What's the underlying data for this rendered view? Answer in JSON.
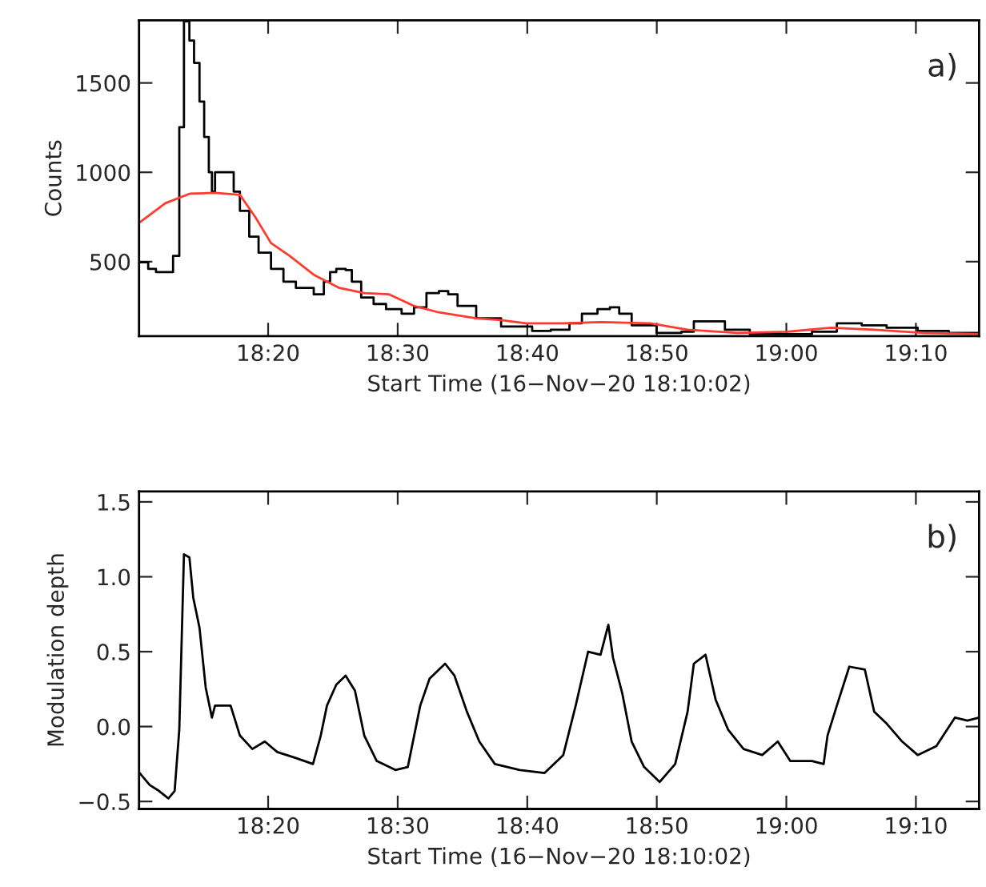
{
  "chart_data": [
    {
      "type": "line",
      "xlabel": "Start Time (16−Nov−20 18:10:02)",
      "ylabel": "Counts",
      "annotations": [
        "a)"
      ],
      "xlim": [
        18.1672,
        19.248
      ],
      "ylim": [
        83,
        1850
      ],
      "yticks": [
        500,
        1000,
        1500
      ],
      "xticks": [
        {
          "value": 18.3333,
          "label": "18:20"
        },
        {
          "value": 18.5,
          "label": "18:30"
        },
        {
          "value": 18.6667,
          "label": "18:40"
        },
        {
          "value": 18.8333,
          "label": "18:50"
        },
        {
          "value": 19.0,
          "label": "19:00"
        },
        {
          "value": 19.1667,
          "label": "19:10"
        }
      ],
      "series": [
        {
          "type": "step",
          "color": "#000000",
          "x": [
            18.168,
            18.179,
            18.189,
            18.205,
            18.211,
            18.219,
            18.225,
            18.232,
            18.238,
            18.245,
            18.251,
            18.257,
            18.261,
            18.265,
            18.281,
            18.289,
            18.297,
            18.309,
            18.321,
            18.337,
            18.353,
            18.369,
            18.392,
            18.405,
            18.413,
            18.421,
            18.433,
            18.441,
            18.453,
            18.469,
            18.485,
            18.505,
            18.521,
            18.537,
            18.553,
            18.565,
            18.577,
            18.601,
            18.633,
            18.673,
            18.697,
            18.721,
            18.737,
            18.757,
            18.773,
            18.785,
            18.801,
            18.833,
            18.865,
            18.881,
            18.897,
            18.921,
            18.953,
            18.993,
            19.033,
            19.065,
            19.097,
            19.129,
            19.169,
            19.209,
            19.248
          ],
          "values": [
            497,
            460,
            442,
            442,
            532,
            1252,
            1845,
            1737,
            1612,
            1396,
            1198,
            1000,
            892,
            1000,
            1000,
            892,
            784,
            640,
            550,
            460,
            388,
            353,
            317,
            388,
            442,
            460,
            453,
            388,
            299,
            263,
            234,
            209,
            245,
            324,
            335,
            317,
            252,
            183,
            137,
            112,
            119,
            155,
            209,
            234,
            245,
            209,
            144,
            101,
            108,
            166,
            166,
            119,
            94,
            94,
            108,
            155,
            144,
            130,
            112,
            101,
            101
          ]
        },
        {
          "color": "#ff3b2f",
          "x": [
            18.168,
            18.201,
            18.233,
            18.265,
            18.297,
            18.317,
            18.337,
            18.361,
            18.393,
            18.425,
            18.457,
            18.489,
            18.521,
            18.553,
            18.601,
            18.633,
            18.665,
            18.713,
            18.761,
            18.825,
            18.873,
            18.937,
            19.001,
            19.057,
            19.113,
            19.177,
            19.248
          ],
          "values": [
            719,
            827,
            881,
            885,
            874,
            748,
            604,
            532,
            424,
            353,
            324,
            317,
            252,
            216,
            183,
            173,
            155,
            155,
            162,
            155,
            119,
            101,
            108,
            130,
            119,
            101,
            94
          ]
        }
      ]
    },
    {
      "type": "line",
      "xlabel": "Start Time (16−Nov−20 18:10:02)",
      "ylabel": "Modulation depth",
      "annotations": [
        "b)"
      ],
      "xlim": [
        18.1672,
        19.248
      ],
      "ylim": [
        -0.55,
        1.57
      ],
      "yticks": [
        {
          "value": -0.5,
          "label": "−0.5"
        },
        {
          "value": 0.0,
          "label": "0.0"
        },
        {
          "value": 0.5,
          "label": "0.5"
        },
        {
          "value": 1.0,
          "label": "1.0"
        },
        {
          "value": 1.5,
          "label": "1.5"
        }
      ],
      "xticks": [
        {
          "value": 18.3333,
          "label": "18:20"
        },
        {
          "value": 18.5,
          "label": "18:30"
        },
        {
          "value": 18.6667,
          "label": "18:40"
        },
        {
          "value": 18.8333,
          "label": "18:50"
        },
        {
          "value": 19.0,
          "label": "19:00"
        },
        {
          "value": 19.1667,
          "label": "19:10"
        }
      ],
      "series": [
        {
          "color": "#000000",
          "x": [
            18.168,
            18.181,
            18.193,
            18.205,
            18.213,
            18.219,
            18.225,
            18.232,
            18.237,
            18.245,
            18.253,
            18.261,
            18.265,
            18.285,
            18.297,
            18.313,
            18.329,
            18.345,
            18.369,
            18.391,
            18.401,
            18.409,
            18.421,
            18.433,
            18.445,
            18.457,
            18.473,
            18.497,
            18.513,
            18.529,
            18.541,
            18.561,
            18.573,
            18.589,
            18.605,
            18.625,
            18.657,
            18.689,
            18.713,
            18.729,
            18.745,
            18.761,
            18.771,
            18.777,
            18.789,
            18.801,
            18.817,
            18.837,
            18.857,
            18.873,
            18.881,
            18.896,
            18.909,
            18.925,
            18.945,
            18.969,
            18.989,
            19.005,
            19.033,
            19.048,
            19.053,
            19.065,
            19.081,
            19.101,
            19.113,
            19.129,
            19.149,
            19.169,
            19.193,
            19.217,
            19.233,
            19.248
          ],
          "values": [
            -0.31,
            -0.39,
            -0.43,
            -0.48,
            -0.43,
            -0.02,
            1.15,
            1.13,
            0.86,
            0.66,
            0.26,
            0.06,
            0.14,
            0.14,
            -0.06,
            -0.15,
            -0.1,
            -0.17,
            -0.21,
            -0.25,
            -0.06,
            0.14,
            0.28,
            0.34,
            0.24,
            -0.06,
            -0.23,
            -0.29,
            -0.27,
            0.14,
            0.32,
            0.42,
            0.34,
            0.1,
            -0.1,
            -0.25,
            -0.29,
            -0.31,
            -0.19,
            0.14,
            0.5,
            0.48,
            0.68,
            0.46,
            0.22,
            -0.1,
            -0.27,
            -0.37,
            -0.25,
            0.1,
            0.42,
            0.48,
            0.18,
            -0.02,
            -0.15,
            -0.19,
            -0.1,
            -0.23,
            -0.23,
            -0.25,
            -0.06,
            0.14,
            0.4,
            0.38,
            0.1,
            0.02,
            -0.1,
            -0.19,
            -0.13,
            0.06,
            0.04,
            0.06
          ]
        }
      ]
    }
  ]
}
